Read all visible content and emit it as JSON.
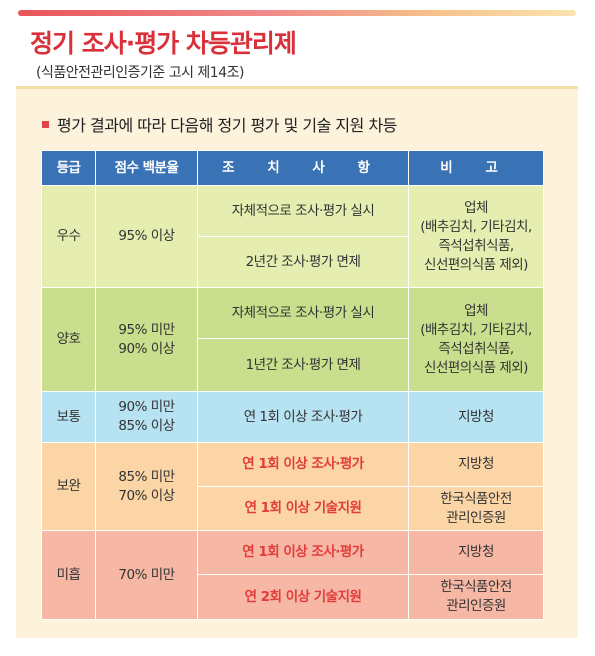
{
  "title": "정기 조사·평가 차등관리제",
  "subtitle": "(식품안전관리인증기준 고시 제14조)",
  "heading": "평가 결과에 따라 다음해 정기 평가 및 기술 지원 차등",
  "headers": {
    "grade": "등급",
    "score": "점수 백분율",
    "action": "조 치 사 항",
    "note": "비 고"
  },
  "rows": {
    "excellent": {
      "grade": "우수",
      "score": "95% 이상",
      "action1": "자체적으로 조사·평가 실시",
      "action2": "2년간 조사·평가 면제",
      "note": [
        "업체",
        "(배추김치, 기타김치,",
        "즉석섭취식품,",
        "신선편의식품 제외)"
      ]
    },
    "good": {
      "grade": "양호",
      "score": [
        "95% 미만",
        "90% 이상"
      ],
      "action1": "자체적으로 조사·평가 실시",
      "action2": "1년간 조사·평가 면제",
      "note": [
        "업체",
        "(배추김치, 기타김치,",
        "즉석섭취식품,",
        "신선편의식품 제외)"
      ]
    },
    "normal": {
      "grade": "보통",
      "score": [
        "90% 미만",
        "85% 이상"
      ],
      "action1": "연 1회 이상 조사·평가",
      "note": "지방청"
    },
    "supplement": {
      "grade": "보완",
      "score": [
        "85% 미만",
        "70% 이상"
      ],
      "action1": "연 1회 이상 조사·평가",
      "note1": "지방청",
      "action2": "연 1회 이상 기술지원",
      "note2": [
        "한국식품안전",
        "관리인증원"
      ]
    },
    "poor": {
      "grade": "미흡",
      "score": "70% 미만",
      "action1": "연 1회 이상 조사·평가",
      "note1": "지방청",
      "action2": "연 2회 이상 기술지원",
      "note2": [
        "한국식품안전",
        "관리인증원"
      ]
    }
  },
  "colors": {
    "accent": "#d9303a",
    "header": "#3a72b6",
    "excellent": "#e6edb0",
    "good": "#c9df8d",
    "normal": "#b7e2f2",
    "supplement": "#fbd5a6",
    "poor": "#f6b7a4"
  }
}
